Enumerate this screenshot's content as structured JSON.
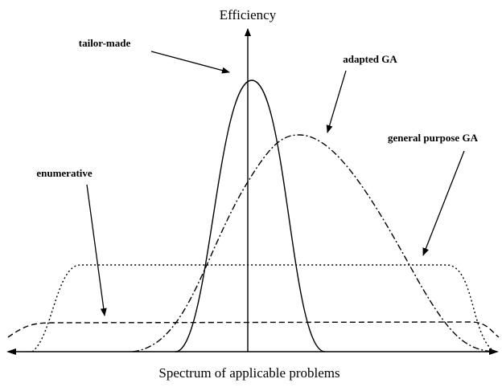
{
  "diagram": {
    "y_axis_label": "Efficiency",
    "x_axis_label": "Spectrum of applicable problems",
    "curves": [
      {
        "label": "tailor-made"
      },
      {
        "label": "adapted GA"
      },
      {
        "label": "general purpose GA"
      },
      {
        "label": "enumerative"
      }
    ]
  }
}
